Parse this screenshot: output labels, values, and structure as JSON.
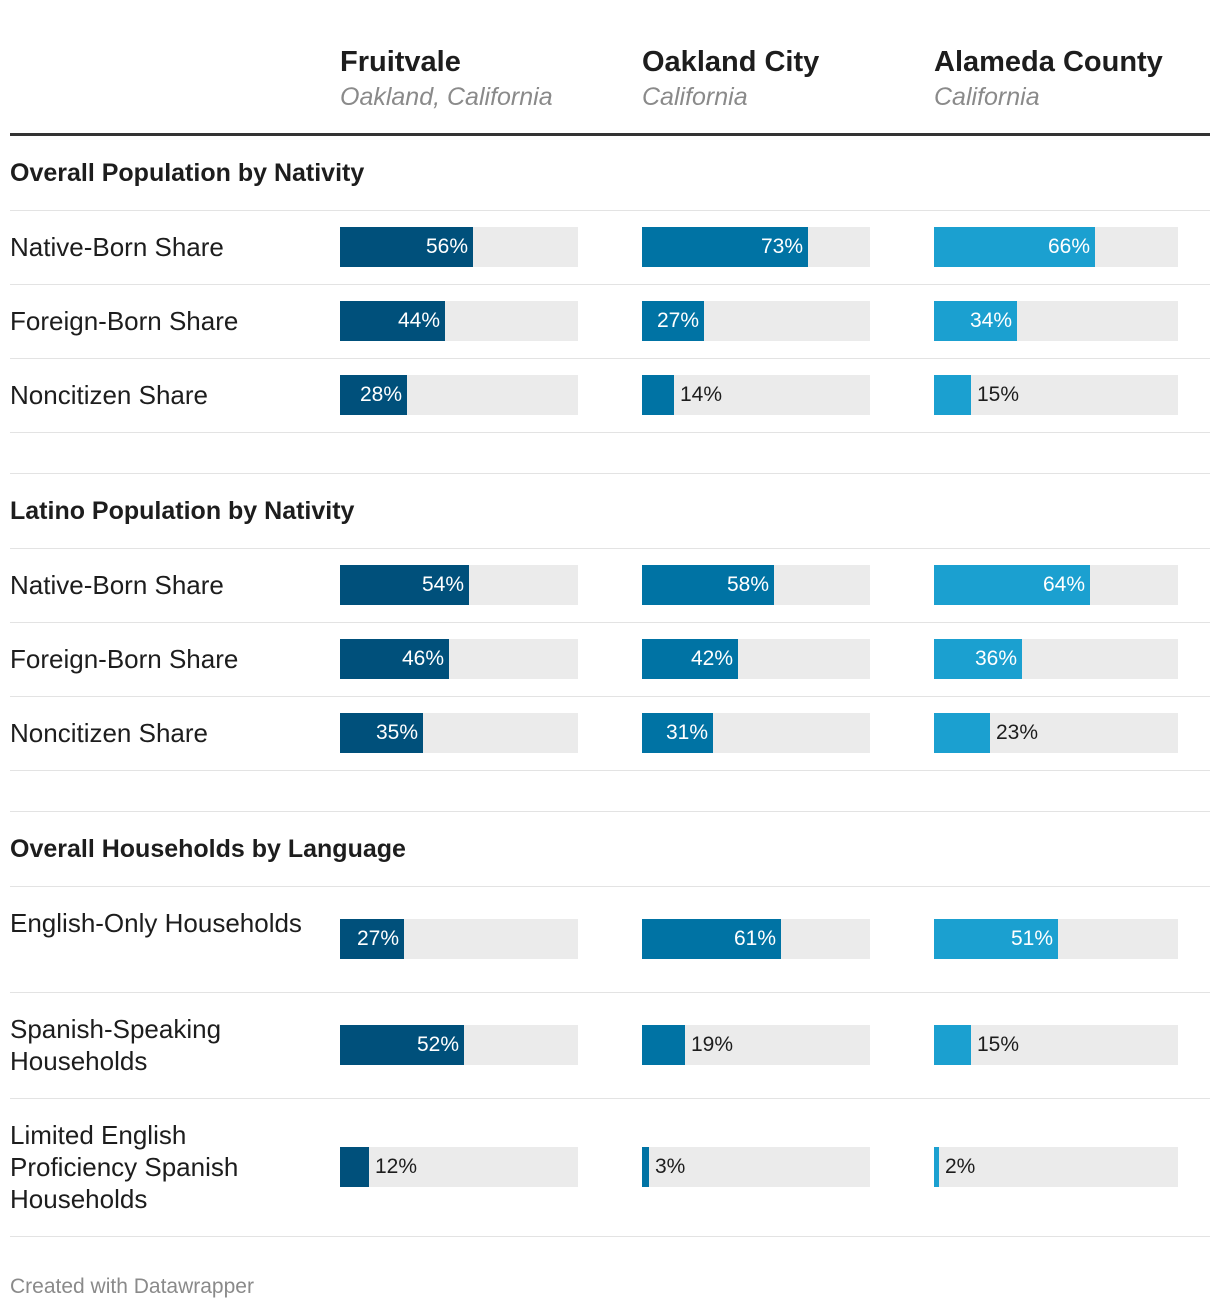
{
  "chart_data": {
    "type": "table",
    "columns": [
      {
        "title": "Fruitvale",
        "subtitle": "Oakland, California",
        "color": "#00507b"
      },
      {
        "title": "Oakland City",
        "subtitle": "California",
        "color": "#0073a4"
      },
      {
        "title": "Alameda County",
        "subtitle": "California",
        "color": "#1ba0d0"
      }
    ],
    "sections": [
      {
        "title": "Overall Population by Nativity",
        "rows": [
          {
            "label": "Native-Born Share",
            "values": [
              56,
              73,
              66
            ]
          },
          {
            "label": "Foreign-Born Share",
            "values": [
              44,
              27,
              34
            ]
          },
          {
            "label": "Noncitizen Share",
            "values": [
              28,
              14,
              15
            ]
          }
        ]
      },
      {
        "title": "Latino Population by Nativity",
        "rows": [
          {
            "label": "Native-Born Share",
            "values": [
              54,
              58,
              64
            ]
          },
          {
            "label": "Foreign-Born Share",
            "values": [
              46,
              42,
              36
            ]
          },
          {
            "label": "Noncitizen Share",
            "values": [
              35,
              31,
              23
            ]
          }
        ]
      },
      {
        "title": "Overall Households by Language",
        "rows": [
          {
            "label": "English-Only Households",
            "values": [
              27,
              61,
              51
            ]
          },
          {
            "label": "Spanish-Speaking Households",
            "values": [
              52,
              19,
              15
            ]
          },
          {
            "label": "Limited English Proficiency Spanish Households",
            "values": [
              12,
              3,
              2
            ]
          }
        ]
      }
    ],
    "value_suffix": "%",
    "max_value": 100,
    "track_color": "#ebebeb"
  },
  "footer": "Created with Datawrapper"
}
